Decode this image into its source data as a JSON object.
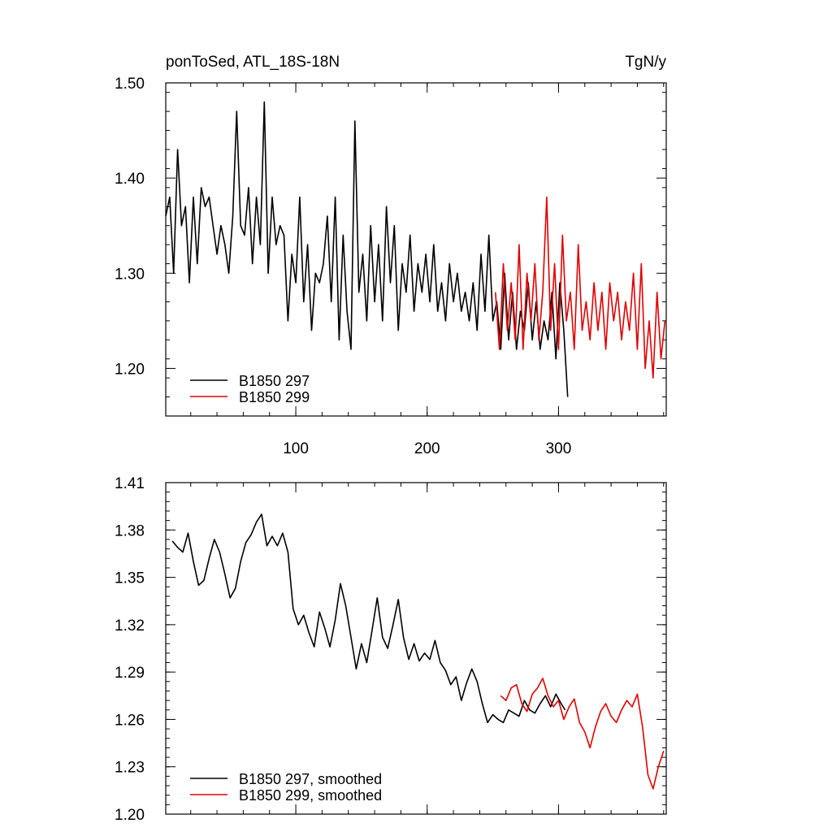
{
  "chart_data": [
    {
      "type": "line",
      "title_left": "ponToSed, ATL_18S-18N",
      "title_right": "TgN/y",
      "xlabel": "",
      "ylabel": "",
      "xlim": [
        1,
        382
      ],
      "ylim": [
        1.15,
        1.5
      ],
      "x_ticks": [
        100,
        200,
        300
      ],
      "y_ticks": [
        1.2,
        1.3,
        1.4,
        1.5
      ],
      "y_tick_labels": [
        "1.20",
        "1.30",
        "1.40",
        "1.50"
      ],
      "grid": false,
      "legend_position": "bottom-left",
      "series": [
        {
          "name": "B1850 297",
          "color": "#000000",
          "x": [
            1,
            4,
            7,
            10,
            13,
            16,
            19,
            22,
            25,
            28,
            31,
            34,
            37,
            40,
            43,
            46,
            49,
            52,
            55,
            58,
            61,
            64,
            67,
            70,
            73,
            76,
            79,
            82,
            85,
            88,
            91,
            94,
            97,
            100,
            103,
            106,
            109,
            112,
            115,
            118,
            121,
            124,
            127,
            130,
            133,
            136,
            139,
            142,
            145,
            148,
            151,
            154,
            157,
            160,
            163,
            166,
            169,
            172,
            175,
            178,
            181,
            184,
            187,
            190,
            193,
            196,
            199,
            202,
            205,
            208,
            211,
            214,
            217,
            220,
            223,
            226,
            229,
            232,
            235,
            238,
            241,
            244,
            247,
            250,
            253,
            256,
            259,
            262,
            265,
            268,
            271,
            274,
            277,
            280,
            283,
            286,
            289,
            292,
            295,
            298,
            301,
            304,
            307
          ],
          "y": [
            1.36,
            1.38,
            1.3,
            1.43,
            1.35,
            1.37,
            1.29,
            1.38,
            1.31,
            1.39,
            1.37,
            1.38,
            1.35,
            1.32,
            1.35,
            1.33,
            1.3,
            1.36,
            1.47,
            1.35,
            1.34,
            1.39,
            1.31,
            1.38,
            1.33,
            1.48,
            1.3,
            1.38,
            1.33,
            1.35,
            1.34,
            1.25,
            1.32,
            1.29,
            1.38,
            1.27,
            1.33,
            1.24,
            1.3,
            1.29,
            1.31,
            1.36,
            1.27,
            1.38,
            1.23,
            1.34,
            1.26,
            1.22,
            1.46,
            1.28,
            1.32,
            1.25,
            1.35,
            1.27,
            1.33,
            1.25,
            1.37,
            1.29,
            1.35,
            1.24,
            1.31,
            1.28,
            1.34,
            1.26,
            1.31,
            1.28,
            1.32,
            1.27,
            1.33,
            1.26,
            1.29,
            1.25,
            1.31,
            1.27,
            1.3,
            1.26,
            1.28,
            1.25,
            1.29,
            1.24,
            1.32,
            1.26,
            1.34,
            1.25,
            1.27,
            1.22,
            1.3,
            1.23,
            1.28,
            1.22,
            1.26,
            1.24,
            1.29,
            1.23,
            1.27,
            1.22,
            1.25,
            1.23,
            1.28,
            1.21,
            1.29,
            1.24,
            1.17
          ]
        },
        {
          "name": "B1850 299",
          "color": "#e00000",
          "x": [
            252,
            255,
            258,
            261,
            264,
            267,
            270,
            273,
            276,
            279,
            282,
            285,
            288,
            291,
            294,
            297,
            300,
            303,
            306,
            309,
            312,
            315,
            318,
            321,
            324,
            327,
            330,
            333,
            336,
            339,
            342,
            345,
            348,
            351,
            354,
            357,
            360,
            363,
            366,
            369,
            372,
            375,
            378,
            381
          ],
          "y": [
            1.28,
            1.22,
            1.31,
            1.24,
            1.29,
            1.23,
            1.33,
            1.22,
            1.3,
            1.25,
            1.31,
            1.23,
            1.28,
            1.38,
            1.24,
            1.31,
            1.22,
            1.34,
            1.25,
            1.28,
            1.22,
            1.33,
            1.24,
            1.27,
            1.23,
            1.29,
            1.24,
            1.28,
            1.22,
            1.29,
            1.25,
            1.28,
            1.23,
            1.27,
            1.24,
            1.3,
            1.22,
            1.31,
            1.2,
            1.25,
            1.19,
            1.28,
            1.21,
            1.25
          ]
        }
      ]
    },
    {
      "type": "line",
      "xlabel": "",
      "ylabel": "",
      "xlim": [
        1,
        382
      ],
      "ylim": [
        1.2,
        1.41
      ],
      "x_ticks": [
        100,
        200,
        300
      ],
      "y_ticks": [
        1.2,
        1.23,
        1.26,
        1.29,
        1.32,
        1.35,
        1.38,
        1.41
      ],
      "y_tick_labels": [
        "1.20",
        "1.23",
        "1.26",
        "1.29",
        "1.32",
        "1.35",
        "1.38",
        "1.41"
      ],
      "grid": false,
      "legend_position": "bottom-left",
      "series": [
        {
          "name": "B1850 297, smoothed",
          "color": "#000000",
          "x": [
            6,
            10,
            14,
            18,
            22,
            26,
            30,
            34,
            38,
            42,
            46,
            50,
            54,
            58,
            62,
            66,
            70,
            74,
            78,
            82,
            86,
            90,
            94,
            98,
            102,
            106,
            110,
            114,
            118,
            122,
            126,
            130,
            134,
            138,
            142,
            146,
            150,
            154,
            158,
            162,
            166,
            170,
            174,
            178,
            182,
            186,
            190,
            194,
            198,
            202,
            206,
            210,
            214,
            218,
            222,
            226,
            230,
            234,
            238,
            242,
            246,
            250,
            254,
            258,
            262,
            266,
            270,
            274,
            278,
            282,
            286,
            290,
            294,
            298,
            302,
            305
          ],
          "y": [
            1.373,
            1.369,
            1.366,
            1.378,
            1.36,
            1.345,
            1.348,
            1.362,
            1.374,
            1.366,
            1.352,
            1.337,
            1.343,
            1.36,
            1.372,
            1.377,
            1.385,
            1.39,
            1.37,
            1.376,
            1.37,
            1.378,
            1.366,
            1.33,
            1.32,
            1.326,
            1.315,
            1.306,
            1.328,
            1.318,
            1.306,
            1.323,
            1.346,
            1.332,
            1.312,
            1.292,
            1.308,
            1.296,
            1.316,
            1.337,
            1.312,
            1.305,
            1.32,
            1.336,
            1.312,
            1.298,
            1.308,
            1.297,
            1.302,
            1.298,
            1.31,
            1.296,
            1.291,
            1.282,
            1.287,
            1.272,
            1.283,
            1.292,
            1.284,
            1.27,
            1.258,
            1.263,
            1.26,
            1.258,
            1.266,
            1.264,
            1.262,
            1.272,
            1.266,
            1.264,
            1.27,
            1.275,
            1.268,
            1.276,
            1.27,
            1.266
          ]
        },
        {
          "name": "B1850 299, smoothed",
          "color": "#e00000",
          "x": [
            256,
            260,
            264,
            268,
            272,
            276,
            280,
            284,
            288,
            292,
            296,
            300,
            304,
            308,
            312,
            316,
            320,
            324,
            328,
            332,
            336,
            340,
            344,
            348,
            352,
            356,
            360,
            364,
            368,
            372,
            376,
            380
          ],
          "y": [
            1.275,
            1.272,
            1.28,
            1.282,
            1.27,
            1.265,
            1.276,
            1.28,
            1.286,
            1.275,
            1.268,
            1.272,
            1.26,
            1.268,
            1.273,
            1.258,
            1.252,
            1.242,
            1.255,
            1.265,
            1.27,
            1.262,
            1.258,
            1.266,
            1.272,
            1.268,
            1.276,
            1.255,
            1.225,
            1.216,
            1.23,
            1.24
          ]
        }
      ]
    }
  ]
}
